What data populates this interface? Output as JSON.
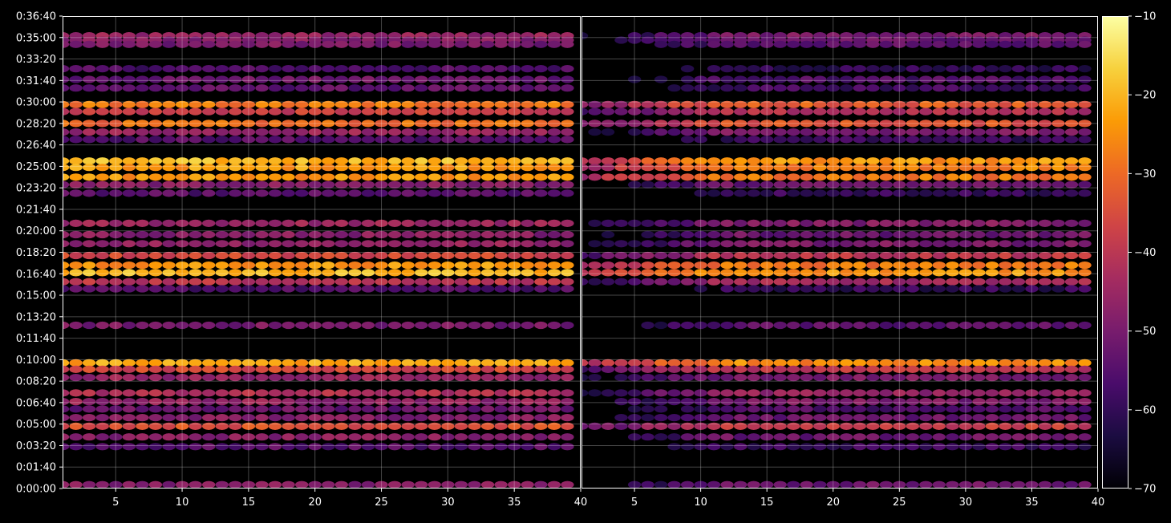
{
  "chart_data": {
    "type": "heatmap",
    "background": "#000000",
    "colormap": "inferno",
    "colormap_stops": [
      "#000004",
      "#1b0c41",
      "#4a0c6b",
      "#781c6d",
      "#a52c60",
      "#cf4446",
      "#ed6925",
      "#fb9b06",
      "#f7d13d",
      "#fcffa4"
    ],
    "grid": true,
    "panels": [
      {
        "name": "",
        "xlim": [
          1,
          40
        ],
        "xticks": [
          5,
          10,
          15,
          20,
          25,
          30,
          35,
          40
        ]
      },
      {
        "name": "",
        "xlim": [
          1,
          40
        ],
        "xticks": [
          5,
          10,
          15,
          20,
          25,
          30,
          35,
          40
        ]
      }
    ],
    "y_axis": {
      "min_seconds": 0,
      "max_seconds": 2200,
      "tick_seconds": [
        0,
        100,
        200,
        300,
        400,
        500,
        600,
        700,
        800,
        900,
        1000,
        1100,
        1200,
        1300,
        1400,
        1500,
        1600,
        1700,
        1800,
        1900,
        2000,
        2100,
        2200
      ],
      "tick_labels": [
        "0:00:00",
        "0:01:40",
        "0:03:20",
        "0:05:00",
        "0:06:40",
        "0:08:20",
        "0:10:00",
        "0:11:40",
        "0:13:20",
        "0:15:00",
        "0:16:40",
        "0:18:20",
        "0:20:00",
        "0:21:40",
        "0:23:20",
        "0:25:00",
        "0:26:40",
        "0:28:20",
        "0:30:00",
        "0:31:40",
        "0:33:20",
        "0:35:00",
        "0:36:40"
      ]
    },
    "colorbar": {
      "min": -70,
      "max": -10,
      "ticks": [
        -10,
        -20,
        -30,
        -40,
        -50,
        -60,
        -70
      ],
      "tick_labels": [
        "−10",
        "−20",
        "−30",
        "−40",
        "−50",
        "−60",
        "−70"
      ]
    },
    "bands": [
      {
        "t": 2108,
        "level": -46,
        "start": 1,
        "end": 39.5
      },
      {
        "t": 2088,
        "level": -48,
        "start": 1,
        "end": 39.5
      },
      {
        "t": 2068,
        "level": -50,
        "start": 1,
        "end": 39.5
      },
      {
        "t": 1955,
        "level": -56,
        "start": 1,
        "end": 39.5
      },
      {
        "t": 1905,
        "level": -52,
        "start": 1,
        "end": 39.5
      },
      {
        "t": 1865,
        "level": -54,
        "start": 1,
        "end": 39.5
      },
      {
        "t": 1788,
        "level": -28,
        "start": 1,
        "end": 39.5
      },
      {
        "t": 1755,
        "level": -38,
        "start": 1,
        "end": 39.5
      },
      {
        "t": 1700,
        "level": -30,
        "start": 1,
        "end": 39.5
      },
      {
        "t": 1660,
        "level": -45,
        "start": 1,
        "end": 39.5
      },
      {
        "t": 1625,
        "level": -55,
        "start": 1,
        "end": 39.5
      },
      {
        "t": 1525,
        "level": -20,
        "start": 1,
        "end": 39.5
      },
      {
        "t": 1495,
        "level": -23,
        "start": 1,
        "end": 39.5
      },
      {
        "t": 1450,
        "level": -24,
        "start": 1,
        "end": 39.5
      },
      {
        "t": 1415,
        "level": -48,
        "start": 1,
        "end": 39.5
      },
      {
        "t": 1375,
        "level": -55,
        "start": 1,
        "end": 39.5
      },
      {
        "t": 1235,
        "level": -45,
        "start": 1,
        "end": 39.5
      },
      {
        "t": 1182,
        "level": -48,
        "start": 1,
        "end": 39.5
      },
      {
        "t": 1140,
        "level": -46,
        "start": 1,
        "end": 39.5
      },
      {
        "t": 1085,
        "level": -36,
        "start": 1,
        "end": 39.5
      },
      {
        "t": 1040,
        "level": -24,
        "start": 1,
        "end": 39.5
      },
      {
        "t": 1005,
        "level": -20,
        "start": 1,
        "end": 39.5
      },
      {
        "t": 963,
        "level": -40,
        "start": 1,
        "end": 39.5
      },
      {
        "t": 930,
        "level": -56,
        "start": 1,
        "end": 39.5
      },
      {
        "t": 760,
        "level": -50,
        "start": 1,
        "end": 39.5
      },
      {
        "t": 585,
        "level": -22,
        "start": 1,
        "end": 39.5
      },
      {
        "t": 555,
        "level": -36,
        "start": 1,
        "end": 39.5
      },
      {
        "t": 517,
        "level": -46,
        "start": 1,
        "end": 39.5
      },
      {
        "t": 445,
        "level": -42,
        "start": 1,
        "end": 39.5
      },
      {
        "t": 405,
        "level": -46,
        "start": 1,
        "end": 39.5
      },
      {
        "t": 370,
        "level": -52,
        "start": 1,
        "end": 39.5
      },
      {
        "t": 330,
        "level": -48,
        "start": 1,
        "end": 39.5
      },
      {
        "t": 290,
        "level": -34,
        "start": 1,
        "end": 39.5
      },
      {
        "t": 240,
        "level": -48,
        "start": 1,
        "end": 39.5
      },
      {
        "t": 195,
        "level": -55,
        "start": 1,
        "end": 39.5
      },
      {
        "t": 18,
        "level": -48,
        "start": 1,
        "end": 39.5
      }
    ]
  }
}
